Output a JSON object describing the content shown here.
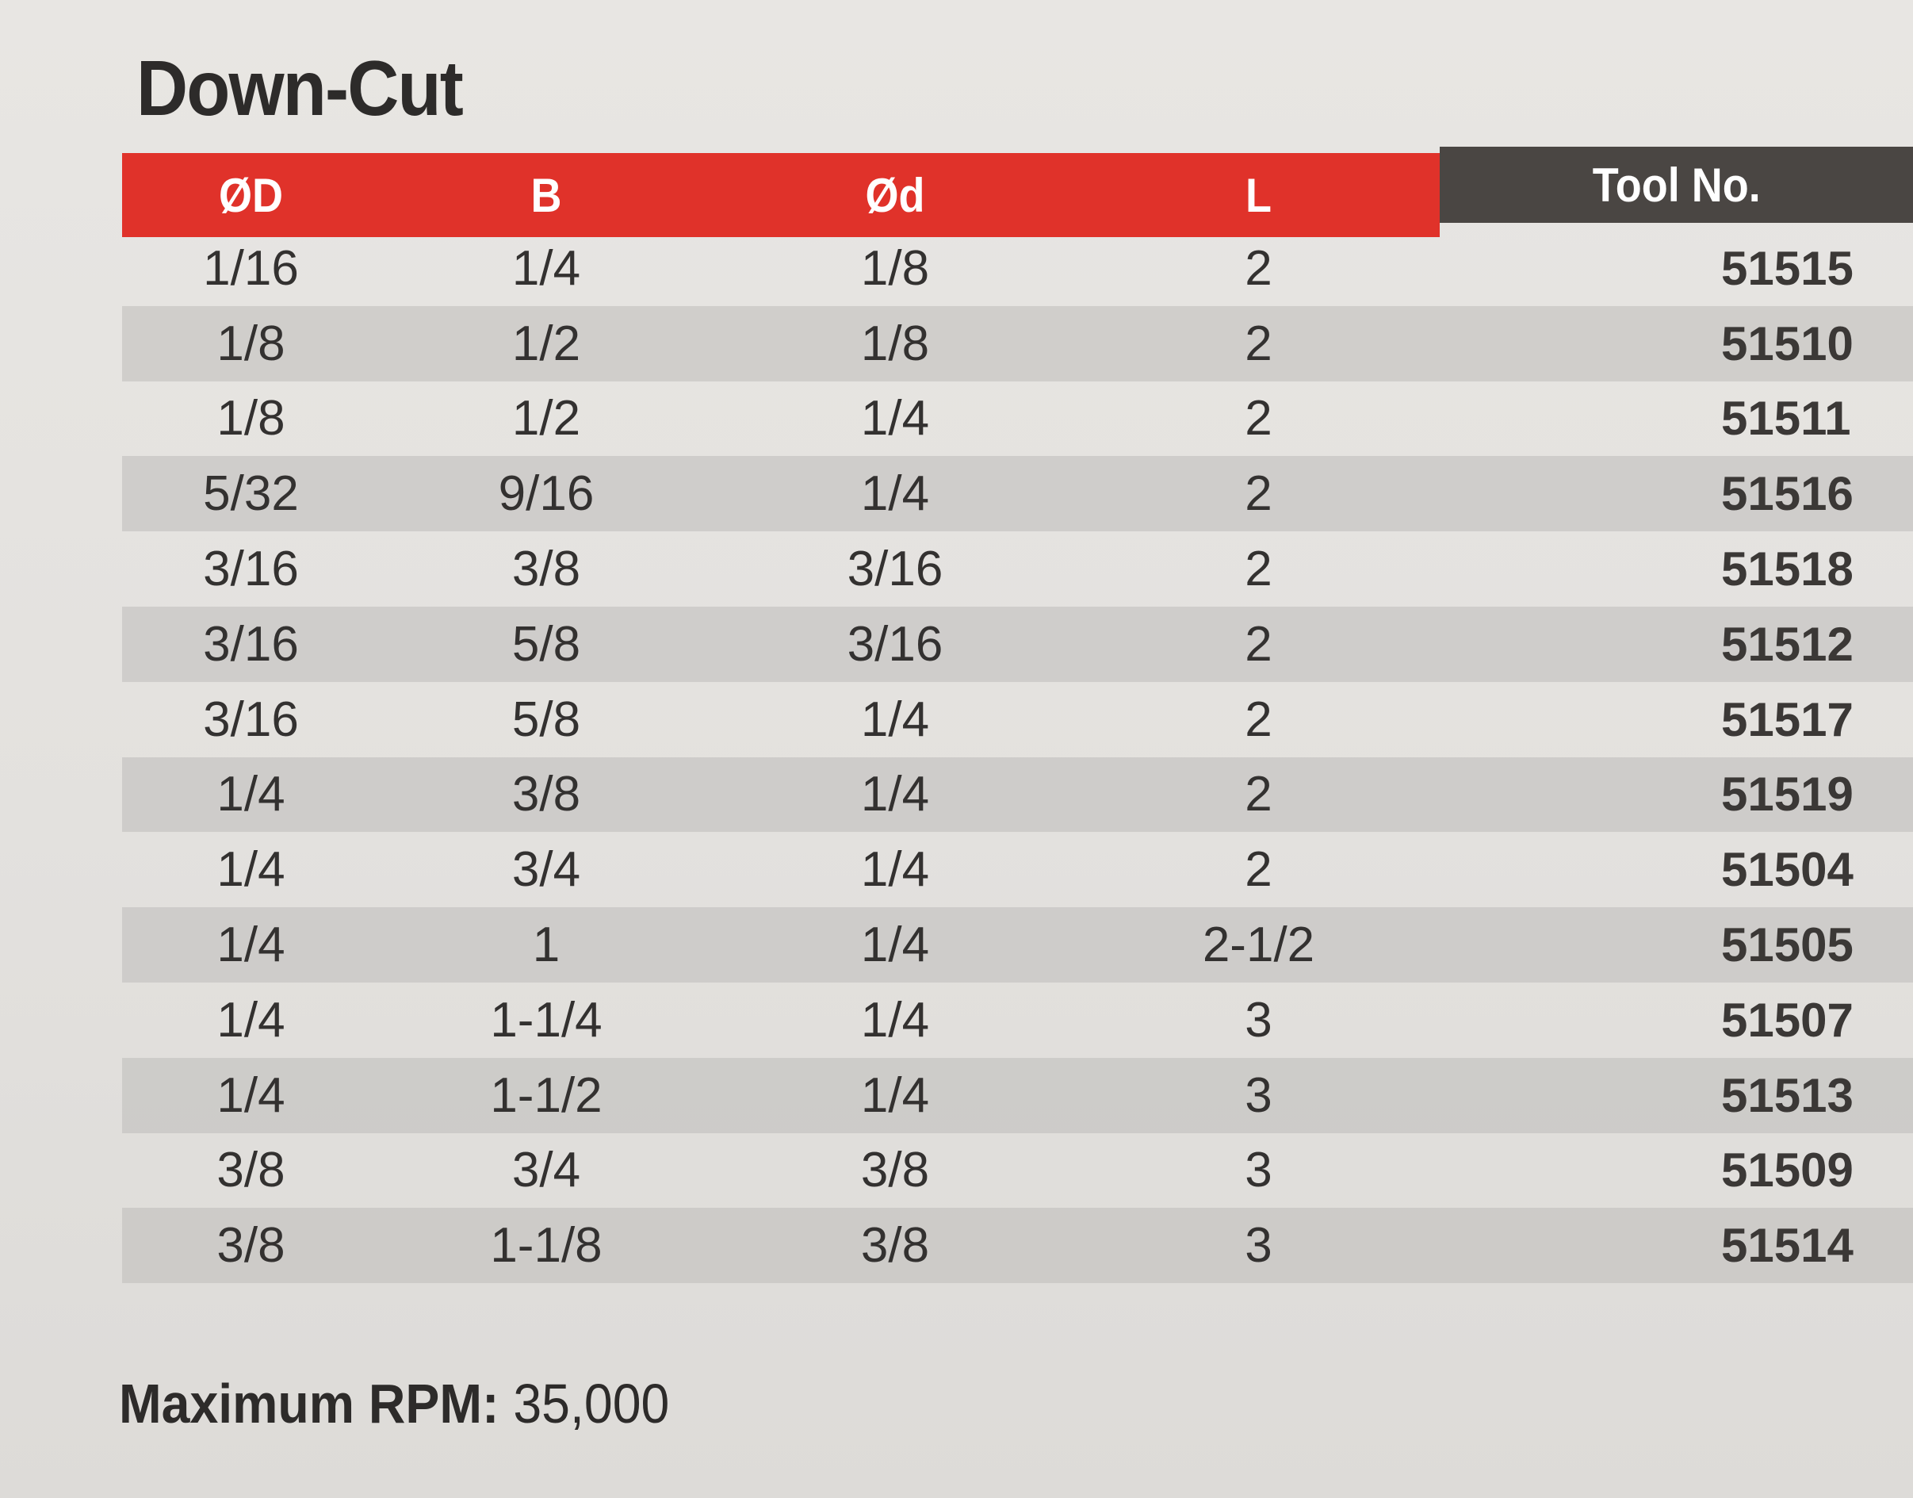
{
  "title": "Down-Cut",
  "table": {
    "headers": [
      "ØD",
      "B",
      "Ød",
      "L",
      "Tool No."
    ],
    "rows": [
      [
        "1/16",
        "1/4",
        "1/8",
        "2",
        "51515"
      ],
      [
        "1/8",
        "1/2",
        "1/8",
        "2",
        "51510"
      ],
      [
        "1/8",
        "1/2",
        "1/4",
        "2",
        "51511"
      ],
      [
        "5/32",
        "9/16",
        "1/4",
        "2",
        "51516"
      ],
      [
        "3/16",
        "3/8",
        "3/16",
        "2",
        "51518"
      ],
      [
        "3/16",
        "5/8",
        "3/16",
        "2",
        "51512"
      ],
      [
        "3/16",
        "5/8",
        "1/4",
        "2",
        "51517"
      ],
      [
        "1/4",
        "3/8",
        "1/4",
        "2",
        "51519"
      ],
      [
        "1/4",
        "3/4",
        "1/4",
        "2",
        "51504"
      ],
      [
        "1/4",
        "1",
        "1/4",
        "2-1/2",
        "51505"
      ],
      [
        "1/4",
        "1-1/4",
        "1/4",
        "3",
        "51507"
      ],
      [
        "1/4",
        "1-1/2",
        "1/4",
        "3",
        "51513"
      ],
      [
        "3/8",
        "3/4",
        "3/8",
        "3",
        "51509"
      ],
      [
        "3/8",
        "1-1/8",
        "3/8",
        "3",
        "51514"
      ]
    ]
  },
  "footer": {
    "label": "Maximum RPM:",
    "value": " 35,000"
  },
  "colors": {
    "header_red": "#e0322a",
    "header_dark": "#4a4643",
    "row_shade": "#bebcb9"
  }
}
